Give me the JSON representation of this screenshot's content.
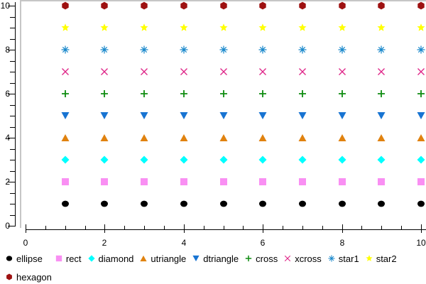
{
  "chart_data": {
    "type": "scatter",
    "title": "",
    "xlabel": "",
    "ylabel": "",
    "grid": false,
    "legend_position": "bottom",
    "x": [
      1,
      2,
      3,
      4,
      5,
      6,
      7,
      8,
      9,
      10
    ],
    "points_per_series": 10,
    "xaxis": {
      "min": 0,
      "max": 10,
      "minor_tick_step": 0.5,
      "major_tick_step": 2,
      "tick_labels": [
        "0",
        "2",
        "4",
        "6",
        "8",
        "10"
      ]
    },
    "yaxis": {
      "min": 0,
      "max": 10,
      "minor_tick_step": 0.5,
      "major_tick_step": 2,
      "tick_labels": [
        "0",
        "2",
        "4",
        "6",
        "8",
        "10"
      ]
    },
    "series": [
      {
        "name": "ellipse",
        "marker": "ellipse",
        "color": "#000000",
        "y": 1
      },
      {
        "name": "rect",
        "marker": "rect",
        "color": "#F98FF3",
        "y": 2
      },
      {
        "name": "diamond",
        "marker": "diamond",
        "color": "#00FFFF",
        "y": 3
      },
      {
        "name": "utriangle",
        "marker": "utriangle",
        "color": "#E0820F",
        "y": 4
      },
      {
        "name": "dtriangle",
        "marker": "dtriangle",
        "color": "#1874D2",
        "y": 5
      },
      {
        "name": "cross",
        "marker": "cross",
        "color": "#0E8C10",
        "y": 6
      },
      {
        "name": "xcross",
        "marker": "xcross",
        "color": "#DE2387",
        "y": 7
      },
      {
        "name": "star1",
        "marker": "star1",
        "color": "#1787CB",
        "y": 8
      },
      {
        "name": "star2",
        "marker": "star2",
        "color": "#FFFF00",
        "y": 9
      },
      {
        "name": "hexagon",
        "marker": "hexagon",
        "color": "#9E1111",
        "y": 10
      }
    ]
  },
  "colors": {
    "background": "#FFFFFF",
    "plot_border": "#C6C6C6",
    "axis": "#000000",
    "text": "#000000"
  }
}
